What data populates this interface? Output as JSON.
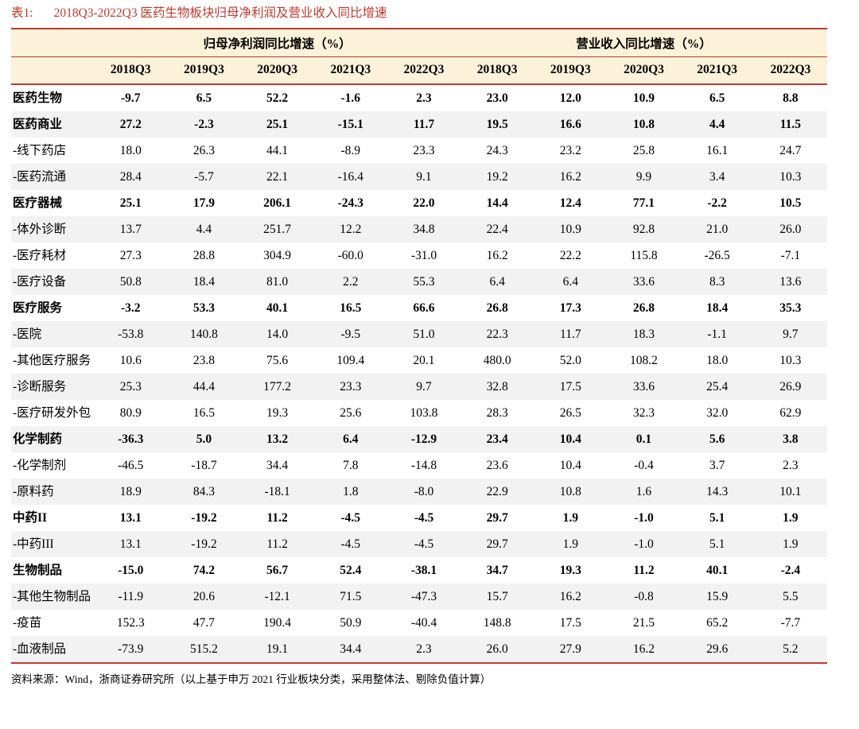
{
  "title": {
    "prefix": "表1:",
    "text": "2018Q3-2022Q3 医药生物板块归母净利润及营业收入同比增速"
  },
  "table": {
    "group_headers": [
      "归母净利润同比增速（%）",
      "营业收入同比增速（%）"
    ],
    "quarter_headers": [
      "2018Q3",
      "2019Q3",
      "2020Q3",
      "2021Q3",
      "2022Q3",
      "2018Q3",
      "2019Q3",
      "2020Q3",
      "2021Q3",
      "2022Q3"
    ],
    "rows": [
      {
        "label": "医药生物",
        "bold": true,
        "values": [
          "-9.7",
          "6.5",
          "52.2",
          "-1.6",
          "2.3",
          "23.0",
          "12.0",
          "10.9",
          "6.5",
          "8.8"
        ]
      },
      {
        "label": "医药商业",
        "bold": true,
        "values": [
          "27.2",
          "-2.3",
          "25.1",
          "-15.1",
          "11.7",
          "19.5",
          "16.6",
          "10.8",
          "4.4",
          "11.5"
        ]
      },
      {
        "label": "-线下药店",
        "bold": false,
        "values": [
          "18.0",
          "26.3",
          "44.1",
          "-8.9",
          "23.3",
          "24.3",
          "23.2",
          "25.8",
          "16.1",
          "24.7"
        ]
      },
      {
        "label": "-医药流通",
        "bold": false,
        "values": [
          "28.4",
          "-5.7",
          "22.1",
          "-16.4",
          "9.1",
          "19.2",
          "16.2",
          "9.9",
          "3.4",
          "10.3"
        ]
      },
      {
        "label": "医疗器械",
        "bold": true,
        "values": [
          "25.1",
          "17.9",
          "206.1",
          "-24.3",
          "22.0",
          "14.4",
          "12.4",
          "77.1",
          "-2.2",
          "10.5"
        ]
      },
      {
        "label": "-体外诊断",
        "bold": false,
        "values": [
          "13.7",
          "4.4",
          "251.7",
          "12.2",
          "34.8",
          "22.4",
          "10.9",
          "92.8",
          "21.0",
          "26.0"
        ]
      },
      {
        "label": "-医疗耗材",
        "bold": false,
        "values": [
          "27.3",
          "28.8",
          "304.9",
          "-60.0",
          "-31.0",
          "16.2",
          "22.2",
          "115.8",
          "-26.5",
          "-7.1"
        ]
      },
      {
        "label": "-医疗设备",
        "bold": false,
        "values": [
          "50.8",
          "18.4",
          "81.0",
          "2.2",
          "55.3",
          "6.4",
          "6.4",
          "33.6",
          "8.3",
          "13.6"
        ]
      },
      {
        "label": "医疗服务",
        "bold": true,
        "values": [
          "-3.2",
          "53.3",
          "40.1",
          "16.5",
          "66.6",
          "26.8",
          "17.3",
          "26.8",
          "18.4",
          "35.3"
        ]
      },
      {
        "label": "-医院",
        "bold": false,
        "values": [
          "-53.8",
          "140.8",
          "14.0",
          "-9.5",
          "51.0",
          "22.3",
          "11.7",
          "18.3",
          "-1.1",
          "9.7"
        ]
      },
      {
        "label": "-其他医疗服务",
        "bold": false,
        "values": [
          "10.6",
          "23.8",
          "75.6",
          "109.4",
          "20.1",
          "480.0",
          "52.0",
          "108.2",
          "18.0",
          "10.3"
        ]
      },
      {
        "label": "-诊断服务",
        "bold": false,
        "values": [
          "25.3",
          "44.4",
          "177.2",
          "23.3",
          "9.7",
          "32.8",
          "17.5",
          "33.6",
          "25.4",
          "26.9"
        ]
      },
      {
        "label": "-医疗研发外包",
        "bold": false,
        "values": [
          "80.9",
          "16.5",
          "19.3",
          "25.6",
          "103.8",
          "28.3",
          "26.5",
          "32.3",
          "32.0",
          "62.9"
        ]
      },
      {
        "label": "化学制药",
        "bold": true,
        "values": [
          "-36.3",
          "5.0",
          "13.2",
          "6.4",
          "-12.9",
          "23.4",
          "10.4",
          "0.1",
          "5.6",
          "3.8"
        ]
      },
      {
        "label": "-化学制剂",
        "bold": false,
        "values": [
          "-46.5",
          "-18.7",
          "34.4",
          "7.8",
          "-14.8",
          "23.6",
          "10.4",
          "-0.4",
          "3.7",
          "2.3"
        ]
      },
      {
        "label": "-原料药",
        "bold": false,
        "values": [
          "18.9",
          "84.3",
          "-18.1",
          "1.8",
          "-8.0",
          "22.9",
          "10.8",
          "1.6",
          "14.3",
          "10.1"
        ]
      },
      {
        "label": "中药II",
        "bold": true,
        "values": [
          "13.1",
          "-19.2",
          "11.2",
          "-4.5",
          "-4.5",
          "29.7",
          "1.9",
          "-1.0",
          "5.1",
          "1.9"
        ]
      },
      {
        "label": "-中药III",
        "bold": false,
        "values": [
          "13.1",
          "-19.2",
          "11.2",
          "-4.5",
          "-4.5",
          "29.7",
          "1.9",
          "-1.0",
          "5.1",
          "1.9"
        ]
      },
      {
        "label": "生物制品",
        "bold": true,
        "values": [
          "-15.0",
          "74.2",
          "56.7",
          "52.4",
          "-38.1",
          "34.7",
          "19.3",
          "11.2",
          "40.1",
          "-2.4"
        ]
      },
      {
        "label": "-其他生物制品",
        "bold": false,
        "values": [
          "-11.9",
          "20.6",
          "-12.1",
          "71.5",
          "-47.3",
          "15.7",
          "16.2",
          "-0.8",
          "15.9",
          "5.5"
        ]
      },
      {
        "label": "-疫苗",
        "bold": false,
        "values": [
          "152.3",
          "47.7",
          "190.4",
          "50.9",
          "-40.4",
          "148.8",
          "17.5",
          "21.5",
          "65.2",
          "-7.7"
        ]
      },
      {
        "label": "-血液制品",
        "bold": false,
        "values": [
          "-73.9",
          "515.2",
          "19.1",
          "34.4",
          "2.3",
          "26.0",
          "27.9",
          "16.2",
          "29.6",
          "5.2"
        ]
      }
    ]
  },
  "footer": {
    "source_note": "资料来源：Wind，浙商证券研究所（以上基于申万 2021 行业板块分类，采用整体法、剔除负值计算）"
  },
  "colors": {
    "accent": "#c0392b",
    "header_bg": "#fcf2d9",
    "row_alt_bg": "#f2f2f2",
    "text": "#000000"
  }
}
